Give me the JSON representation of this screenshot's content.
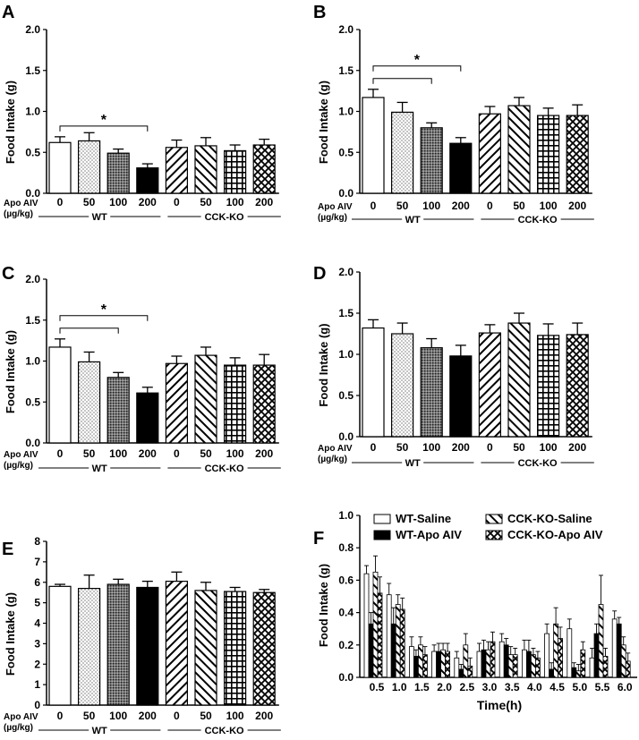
{
  "patterns": [
    "white",
    "dots",
    "cross",
    "black",
    "diag_back",
    "diag_fwd",
    "grid",
    "xhatch"
  ],
  "chart_data": [
    {
      "panel": "A",
      "type": "bar",
      "categories": [
        "0",
        "50",
        "100",
        "200",
        "0",
        "50",
        "100",
        "200"
      ],
      "values": [
        0.62,
        0.64,
        0.49,
        0.31,
        0.56,
        0.58,
        0.52,
        0.59
      ],
      "errors": [
        0.07,
        0.1,
        0.05,
        0.05,
        0.09,
        0.1,
        0.07,
        0.07
      ],
      "ylabel": "Food  Intake  (g)",
      "ylim": [
        0,
        2.0
      ],
      "yticks": [
        "0.0",
        "0.5",
        "1.0",
        "1.5",
        "2.0"
      ],
      "ytick_values": [
        0,
        0.5,
        1.0,
        1.5,
        2.0
      ],
      "dose_label": "Apo AIV",
      "unit_label": "(µg/kg)",
      "groups": [
        "WT",
        "CCK-KO"
      ],
      "significance": [
        {
          "from": 0,
          "to": 3,
          "label": "*"
        }
      ]
    },
    {
      "panel": "B",
      "type": "bar",
      "categories": [
        "0",
        "50",
        "100",
        "200",
        "0",
        "50",
        "100",
        "200"
      ],
      "values": [
        1.17,
        0.99,
        0.8,
        0.61,
        0.97,
        1.07,
        0.95,
        0.95
      ],
      "errors": [
        0.1,
        0.12,
        0.06,
        0.07,
        0.09,
        0.1,
        0.09,
        0.13
      ],
      "ylabel": "Food  Intake  (g)",
      "ylim": [
        0,
        2.0
      ],
      "yticks": [
        "0.0",
        "0.5",
        "1.0",
        "1.5",
        "2.0"
      ],
      "ytick_values": [
        0,
        0.5,
        1.0,
        1.5,
        2.0
      ],
      "dose_label": "Apo AIV",
      "unit_label": "(µg/kg)",
      "groups": [
        "WT",
        "CCK-KO"
      ],
      "significance": [
        {
          "from": 0,
          "to": 2,
          "label": ""
        },
        {
          "from": 0,
          "to": 3,
          "label": "*"
        }
      ]
    },
    {
      "panel": "C",
      "type": "bar",
      "categories": [
        "0",
        "50",
        "100",
        "200",
        "0",
        "50",
        "100",
        "200"
      ],
      "values": [
        1.17,
        0.99,
        0.8,
        0.61,
        0.97,
        1.07,
        0.95,
        0.95
      ],
      "errors": [
        0.1,
        0.12,
        0.06,
        0.07,
        0.09,
        0.1,
        0.09,
        0.13
      ],
      "ylabel": "Food  Intake  (g)",
      "ylim": [
        0,
        2.0
      ],
      "yticks": [
        "0.0",
        "0.5",
        "1.0",
        "1.5",
        "2.0"
      ],
      "ytick_values": [
        0,
        0.5,
        1.0,
        1.5,
        2.0
      ],
      "dose_label": "Apo AIV",
      "unit_label": "(µg/kg)",
      "groups": [
        "WT",
        "CCK-KO"
      ],
      "significance": [
        {
          "from": 0,
          "to": 2,
          "label": ""
        },
        {
          "from": 0,
          "to": 3,
          "label": "*"
        }
      ]
    },
    {
      "panel": "D",
      "type": "bar",
      "categories": [
        "0",
        "50",
        "100",
        "200",
        "0",
        "50",
        "100",
        "200"
      ],
      "values": [
        1.32,
        1.25,
        1.08,
        0.98,
        1.26,
        1.38,
        1.23,
        1.24
      ],
      "errors": [
        0.1,
        0.13,
        0.11,
        0.13,
        0.1,
        0.12,
        0.14,
        0.14
      ],
      "ylabel": "Food  Intake  (g)",
      "ylim": [
        0,
        2.0
      ],
      "yticks": [
        "0.0",
        "0.5",
        "1.0",
        "1.5",
        "2.0"
      ],
      "ytick_values": [
        0,
        0.5,
        1.0,
        1.5,
        2.0
      ],
      "dose_label": "Apo AIV",
      "unit_label": "(µg/kg)",
      "groups": [
        "WT",
        "CCK-KO"
      ],
      "significance": []
    },
    {
      "panel": "E",
      "type": "bar",
      "categories": [
        "0",
        "50",
        "100",
        "200",
        "0",
        "50",
        "100",
        "200"
      ],
      "values": [
        5.8,
        5.7,
        5.9,
        5.75,
        6.05,
        5.6,
        5.55,
        5.5
      ],
      "errors": [
        0.1,
        0.65,
        0.25,
        0.3,
        0.45,
        0.4,
        0.2,
        0.15
      ],
      "ylabel": "Food  Intake  (g)",
      "ylim": [
        0,
        8
      ],
      "yticks": [
        "0",
        "1",
        "2",
        "3",
        "4",
        "5",
        "6",
        "7",
        "8"
      ],
      "ytick_values": [
        0,
        1,
        2,
        3,
        4,
        5,
        6,
        7,
        8
      ],
      "dose_label": "Apo AIV",
      "unit_label": "(µg/kg)",
      "groups": [
        "WT",
        "CCK-KO"
      ],
      "significance": []
    },
    {
      "panel": "F",
      "type": "bar",
      "categories": [
        "0.5",
        "1.0",
        "1.5",
        "2.0",
        "2.5",
        "3.0",
        "3.5",
        "4.0",
        "4.5",
        "5.0",
        "5.5",
        "6.0"
      ],
      "xlabel": "Time(h)",
      "ylabel": "Food  Intake  (g)",
      "ylim": [
        0,
        1.0
      ],
      "yticks": [
        "0.0",
        "0.2",
        "0.4",
        "0.6",
        "0.8",
        "1.0"
      ],
      "ytick_values": [
        0,
        0.2,
        0.4,
        0.6,
        0.8,
        1.0
      ],
      "series": [
        {
          "name": "WT-Saline",
          "pattern": "white",
          "values": [
            0.64,
            0.51,
            0.19,
            0.16,
            0.12,
            0.16,
            0.22,
            0.17,
            0.27,
            0.3,
            0.12,
            0.36
          ],
          "errors": [
            0.05,
            0.07,
            0.06,
            0.04,
            0.04,
            0.05,
            0.05,
            0.06,
            0.06,
            0.06,
            0.06,
            0.05
          ]
        },
        {
          "name": "WT-Apo AIV",
          "pattern": "black",
          "values": [
            0.33,
            0.33,
            0.13,
            0.16,
            0.05,
            0.17,
            0.2,
            0.16,
            0.05,
            0.06,
            0.27,
            0.33
          ],
          "errors": [
            0.07,
            0.1,
            0.04,
            0.05,
            0.03,
            0.06,
            0.04,
            0.07,
            0.04,
            0.03,
            0.06,
            0.04
          ]
        },
        {
          "name": "CCK-KO-Saline",
          "pattern": "diag_fwd",
          "values": [
            0.65,
            0.45,
            0.2,
            0.17,
            0.2,
            0.17,
            0.14,
            0.14,
            0.33,
            0.04,
            0.45,
            0.2
          ],
          "errors": [
            0.1,
            0.06,
            0.05,
            0.04,
            0.07,
            0.05,
            0.05,
            0.04,
            0.1,
            0.04,
            0.18,
            0.05
          ]
        },
        {
          "name": "CCK-KO-Apo AIV",
          "pattern": "xhatch",
          "values": [
            0.52,
            0.42,
            0.14,
            0.16,
            0.07,
            0.22,
            0.14,
            0.12,
            0.24,
            0.17,
            0.13,
            0.1
          ],
          "errors": [
            0.1,
            0.07,
            0.05,
            0.05,
            0.05,
            0.06,
            0.04,
            0.04,
            0.07,
            0.05,
            0.05,
            0.05
          ]
        }
      ]
    }
  ]
}
